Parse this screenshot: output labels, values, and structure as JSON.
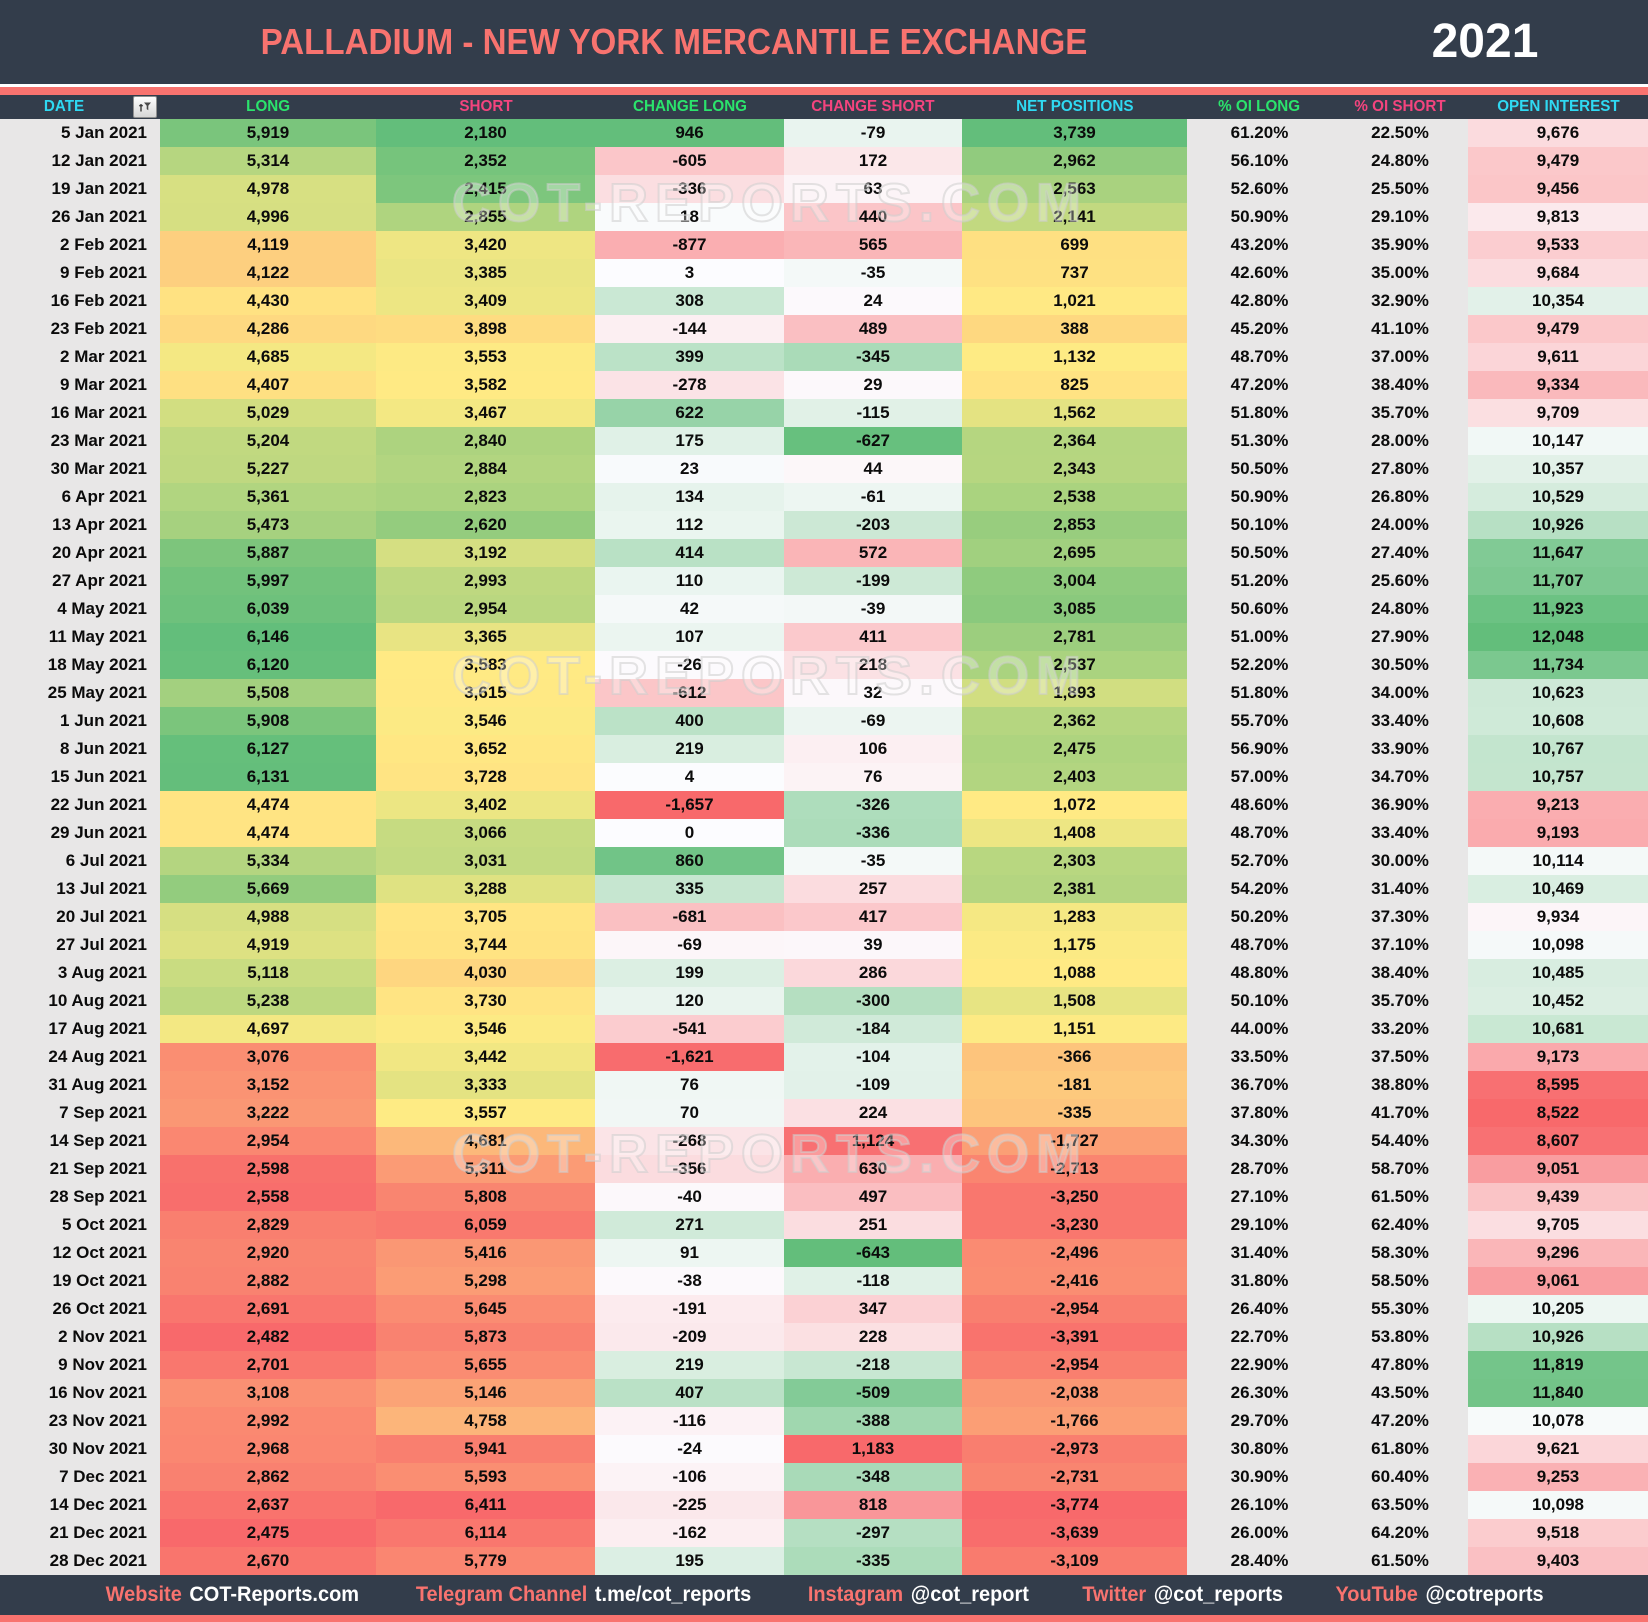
{
  "header": {
    "title": "PALLADIUM - NEW YORK MERCANTILE EXCHANGE",
    "year": "2021"
  },
  "watermark": "COT-REPORTS.COM",
  "colors": {
    "navy": "#333D4B",
    "salmon": "#F8736F",
    "cyan": "#2FD9F2",
    "green": "#2BE36C",
    "pink": "#F4447E",
    "cell_grey": "#E8E7E7",
    "heat_red": "#F8696B",
    "heat_yellow": "#FFEB84",
    "heat_green": "#63BE7B",
    "heat_white": "#FCFCFF"
  },
  "chart_data": {
    "type": "table",
    "title": "PALLADIUM - NEW YORK MERCANTILE EXCHANGE",
    "subtitle": "2021",
    "columns": [
      {
        "id": "date",
        "label": "DATE",
        "accent": "cyan",
        "scale": "flat",
        "filter_icon": "funnel-sort-icon"
      },
      {
        "id": "long",
        "label": "LONG",
        "accent": "green",
        "scale": "ryg"
      },
      {
        "id": "short",
        "label": "SHORT",
        "accent": "pink",
        "scale": "gyr"
      },
      {
        "id": "change-long",
        "label": "CHANGE LONG",
        "accent": "green",
        "scale": "rwg0"
      },
      {
        "id": "change-short",
        "label": "CHANGE SHORT",
        "accent": "pink",
        "scale": "gwr0"
      },
      {
        "id": "net-positions",
        "label": "NET POSITIONS",
        "accent": "cyan",
        "scale": "ryg"
      },
      {
        "id": "oi-long-pct",
        "label": "% OI LONG",
        "accent": "green",
        "scale": "flat"
      },
      {
        "id": "oi-short-pct",
        "label": "% OI SHORT",
        "accent": "pink",
        "scale": "flat"
      },
      {
        "id": "open-interest",
        "label": "OPEN INTEREST",
        "accent": "cyan",
        "scale": "rwg"
      }
    ],
    "rows": [
      [
        "5 Jan 2021",
        "5,919",
        "2,180",
        "946",
        "-79",
        "3,739",
        "61.20%",
        "22.50%",
        "9,676"
      ],
      [
        "12 Jan 2021",
        "5,314",
        "2,352",
        "-605",
        "172",
        "2,962",
        "56.10%",
        "24.80%",
        "9,479"
      ],
      [
        "19 Jan 2021",
        "4,978",
        "2,415",
        "-336",
        "63",
        "2,563",
        "52.60%",
        "25.50%",
        "9,456"
      ],
      [
        "26 Jan 2021",
        "4,996",
        "2,855",
        "18",
        "440",
        "2,141",
        "50.90%",
        "29.10%",
        "9,813"
      ],
      [
        "2 Feb 2021",
        "4,119",
        "3,420",
        "-877",
        "565",
        "699",
        "43.20%",
        "35.90%",
        "9,533"
      ],
      [
        "9 Feb 2021",
        "4,122",
        "3,385",
        "3",
        "-35",
        "737",
        "42.60%",
        "35.00%",
        "9,684"
      ],
      [
        "16 Feb 2021",
        "4,430",
        "3,409",
        "308",
        "24",
        "1,021",
        "42.80%",
        "32.90%",
        "10,354"
      ],
      [
        "23 Feb 2021",
        "4,286",
        "3,898",
        "-144",
        "489",
        "388",
        "45.20%",
        "41.10%",
        "9,479"
      ],
      [
        "2 Mar 2021",
        "4,685",
        "3,553",
        "399",
        "-345",
        "1,132",
        "48.70%",
        "37.00%",
        "9,611"
      ],
      [
        "9 Mar 2021",
        "4,407",
        "3,582",
        "-278",
        "29",
        "825",
        "47.20%",
        "38.40%",
        "9,334"
      ],
      [
        "16 Mar 2021",
        "5,029",
        "3,467",
        "622",
        "-115",
        "1,562",
        "51.80%",
        "35.70%",
        "9,709"
      ],
      [
        "23 Mar 2021",
        "5,204",
        "2,840",
        "175",
        "-627",
        "2,364",
        "51.30%",
        "28.00%",
        "10,147"
      ],
      [
        "30 Mar 2021",
        "5,227",
        "2,884",
        "23",
        "44",
        "2,343",
        "50.50%",
        "27.80%",
        "10,357"
      ],
      [
        "6 Apr 2021",
        "5,361",
        "2,823",
        "134",
        "-61",
        "2,538",
        "50.90%",
        "26.80%",
        "10,529"
      ],
      [
        "13 Apr 2021",
        "5,473",
        "2,620",
        "112",
        "-203",
        "2,853",
        "50.10%",
        "24.00%",
        "10,926"
      ],
      [
        "20 Apr 2021",
        "5,887",
        "3,192",
        "414",
        "572",
        "2,695",
        "50.50%",
        "27.40%",
        "11,647"
      ],
      [
        "27 Apr 2021",
        "5,997",
        "2,993",
        "110",
        "-199",
        "3,004",
        "51.20%",
        "25.60%",
        "11,707"
      ],
      [
        "4 May 2021",
        "6,039",
        "2,954",
        "42",
        "-39",
        "3,085",
        "50.60%",
        "24.80%",
        "11,923"
      ],
      [
        "11 May 2021",
        "6,146",
        "3,365",
        "107",
        "411",
        "2,781",
        "51.00%",
        "27.90%",
        "12,048"
      ],
      [
        "18 May 2021",
        "6,120",
        "3,583",
        "-26",
        "218",
        "2,537",
        "52.20%",
        "30.50%",
        "11,734"
      ],
      [
        "25 May 2021",
        "5,508",
        "3,615",
        "-612",
        "32",
        "1,893",
        "51.80%",
        "34.00%",
        "10,623"
      ],
      [
        "1 Jun 2021",
        "5,908",
        "3,546",
        "400",
        "-69",
        "2,362",
        "55.70%",
        "33.40%",
        "10,608"
      ],
      [
        "8 Jun 2021",
        "6,127",
        "3,652",
        "219",
        "106",
        "2,475",
        "56.90%",
        "33.90%",
        "10,767"
      ],
      [
        "15 Jun 2021",
        "6,131",
        "3,728",
        "4",
        "76",
        "2,403",
        "57.00%",
        "34.70%",
        "10,757"
      ],
      [
        "22 Jun 2021",
        "4,474",
        "3,402",
        "-1,657",
        "-326",
        "1,072",
        "48.60%",
        "36.90%",
        "9,213"
      ],
      [
        "29 Jun 2021",
        "4,474",
        "3,066",
        "0",
        "-336",
        "1,408",
        "48.70%",
        "33.40%",
        "9,193"
      ],
      [
        "6 Jul 2021",
        "5,334",
        "3,031",
        "860",
        "-35",
        "2,303",
        "52.70%",
        "30.00%",
        "10,114"
      ],
      [
        "13 Jul 2021",
        "5,669",
        "3,288",
        "335",
        "257",
        "2,381",
        "54.20%",
        "31.40%",
        "10,469"
      ],
      [
        "20 Jul 2021",
        "4,988",
        "3,705",
        "-681",
        "417",
        "1,283",
        "50.20%",
        "37.30%",
        "9,934"
      ],
      [
        "27 Jul 2021",
        "4,919",
        "3,744",
        "-69",
        "39",
        "1,175",
        "48.70%",
        "37.10%",
        "10,098"
      ],
      [
        "3 Aug 2021",
        "5,118",
        "4,030",
        "199",
        "286",
        "1,088",
        "48.80%",
        "38.40%",
        "10,485"
      ],
      [
        "10 Aug 2021",
        "5,238",
        "3,730",
        "120",
        "-300",
        "1,508",
        "50.10%",
        "35.70%",
        "10,452"
      ],
      [
        "17 Aug 2021",
        "4,697",
        "3,546",
        "-541",
        "-184",
        "1,151",
        "44.00%",
        "33.20%",
        "10,681"
      ],
      [
        "24 Aug 2021",
        "3,076",
        "3,442",
        "-1,621",
        "-104",
        "-366",
        "33.50%",
        "37.50%",
        "9,173"
      ],
      [
        "31 Aug 2021",
        "3,152",
        "3,333",
        "76",
        "-109",
        "-181",
        "36.70%",
        "38.80%",
        "8,595"
      ],
      [
        "7 Sep 2021",
        "3,222",
        "3,557",
        "70",
        "224",
        "-335",
        "37.80%",
        "41.70%",
        "8,522"
      ],
      [
        "14 Sep 2021",
        "2,954",
        "4,681",
        "-268",
        "1,124",
        "-1,727",
        "34.30%",
        "54.40%",
        "8,607"
      ],
      [
        "21 Sep 2021",
        "2,598",
        "5,311",
        "-356",
        "630",
        "-2,713",
        "28.70%",
        "58.70%",
        "9,051"
      ],
      [
        "28 Sep 2021",
        "2,558",
        "5,808",
        "-40",
        "497",
        "-3,250",
        "27.10%",
        "61.50%",
        "9,439"
      ],
      [
        "5 Oct 2021",
        "2,829",
        "6,059",
        "271",
        "251",
        "-3,230",
        "29.10%",
        "62.40%",
        "9,705"
      ],
      [
        "12 Oct 2021",
        "2,920",
        "5,416",
        "91",
        "-643",
        "-2,496",
        "31.40%",
        "58.30%",
        "9,296"
      ],
      [
        "19 Oct 2021",
        "2,882",
        "5,298",
        "-38",
        "-118",
        "-2,416",
        "31.80%",
        "58.50%",
        "9,061"
      ],
      [
        "26 Oct 2021",
        "2,691",
        "5,645",
        "-191",
        "347",
        "-2,954",
        "26.40%",
        "55.30%",
        "10,205"
      ],
      [
        "2 Nov 2021",
        "2,482",
        "5,873",
        "-209",
        "228",
        "-3,391",
        "22.70%",
        "53.80%",
        "10,926"
      ],
      [
        "9 Nov 2021",
        "2,701",
        "5,655",
        "219",
        "-218",
        "-2,954",
        "22.90%",
        "47.80%",
        "11,819"
      ],
      [
        "16 Nov 2021",
        "3,108",
        "5,146",
        "407",
        "-509",
        "-2,038",
        "26.30%",
        "43.50%",
        "11,840"
      ],
      [
        "23 Nov 2021",
        "2,992",
        "4,758",
        "-116",
        "-388",
        "-1,766",
        "29.70%",
        "47.20%",
        "10,078"
      ],
      [
        "30 Nov 2021",
        "2,968",
        "5,941",
        "-24",
        "1,183",
        "-2,973",
        "30.80%",
        "61.80%",
        "9,621"
      ],
      [
        "7 Dec 2021",
        "2,862",
        "5,593",
        "-106",
        "-348",
        "-2,731",
        "30.90%",
        "60.40%",
        "9,253"
      ],
      [
        "14 Dec 2021",
        "2,637",
        "6,411",
        "-225",
        "818",
        "-3,774",
        "26.10%",
        "63.50%",
        "10,098"
      ],
      [
        "21 Dec 2021",
        "2,475",
        "6,114",
        "-162",
        "-297",
        "-3,639",
        "26.00%",
        "64.20%",
        "9,518"
      ],
      [
        "28 Dec 2021",
        "2,670",
        "5,779",
        "195",
        "-335",
        "-3,109",
        "28.40%",
        "61.50%",
        "9,403"
      ]
    ]
  },
  "footer": {
    "items": [
      {
        "label": "Website",
        "value": "COT-Reports.com"
      },
      {
        "label": "Telegram Channel",
        "value": "t.me/cot_reports"
      },
      {
        "label": "Instagram",
        "value": "@cot_report"
      },
      {
        "label": "Twitter",
        "value": "@cot_reports"
      },
      {
        "label": "YouTube",
        "value": "@cotreports"
      }
    ]
  }
}
